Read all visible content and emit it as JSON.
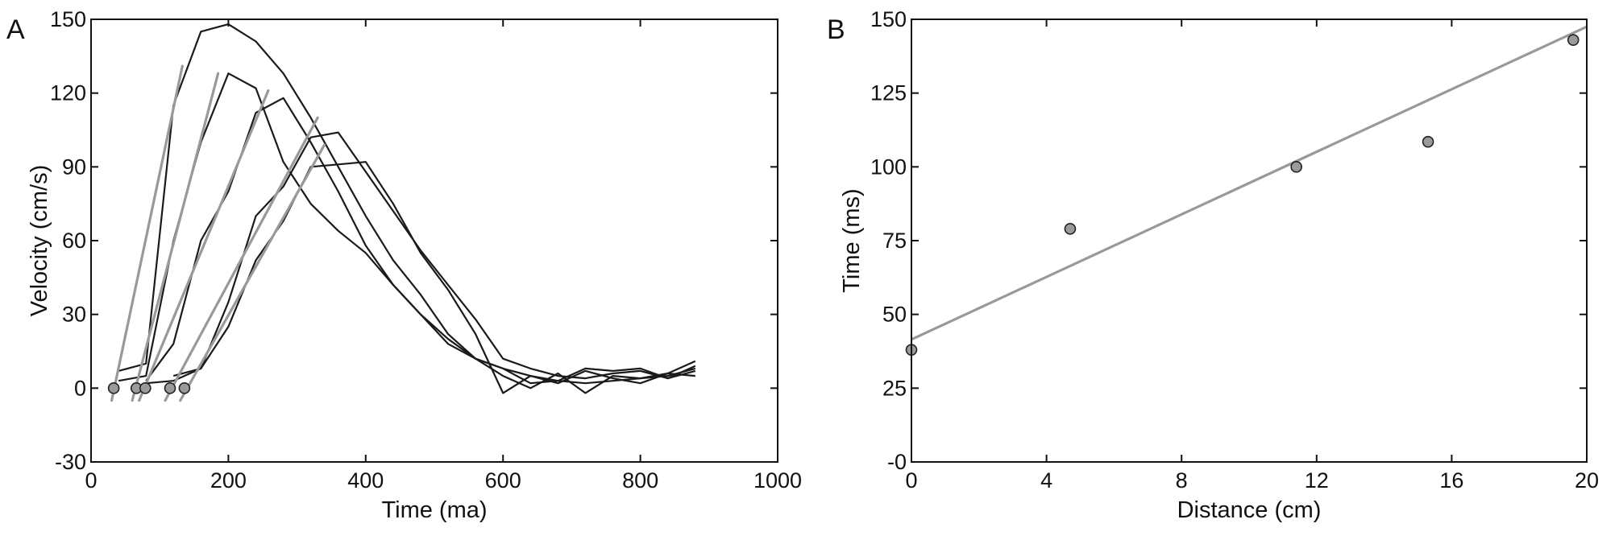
{
  "chart_data": [
    {
      "panel_label": "A",
      "type": "line",
      "title": "",
      "xlabel": "Time (ma)",
      "ylabel": "Velocity (cm/s)",
      "xlim": [
        0,
        1000
      ],
      "ylim": [
        -30,
        150
      ],
      "xticks": [
        0,
        200,
        400,
        600,
        800,
        1000
      ],
      "yticks": [
        -30,
        0,
        30,
        60,
        90,
        120,
        150
      ],
      "xtick_labels": [
        "0",
        "200",
        "400",
        "600",
        "800",
        "1000"
      ],
      "ytick_labels": [
        "-30",
        "0",
        "30",
        "60",
        "90",
        "120",
        "150"
      ],
      "grid": false,
      "series": [
        {
          "color": "#1a1a1a",
          "x": [
            40,
            80,
            120,
            160,
            200,
            240,
            280,
            320,
            360,
            400,
            440,
            480,
            520,
            560,
            600,
            640,
            680,
            720,
            760,
            800,
            840,
            880
          ],
          "y": [
            7,
            10,
            115,
            145,
            148,
            141,
            128,
            110,
            90,
            70,
            52,
            38,
            22,
            12,
            8,
            5,
            3,
            2,
            3,
            4,
            5,
            8
          ]
        },
        {
          "color": "#1a1a1a",
          "x": [
            40,
            80,
            120,
            160,
            200,
            240,
            280,
            320,
            360,
            400,
            440,
            480,
            520,
            560,
            600,
            640,
            680,
            720,
            760,
            800,
            840,
            880
          ],
          "y": [
            3,
            5,
            60,
            100,
            128,
            122,
            92,
            75,
            64,
            55,
            42,
            30,
            18,
            12,
            5,
            0,
            6,
            -2,
            5,
            4,
            6,
            5
          ]
        },
        {
          "color": "#1a1a1a",
          "x": [
            80,
            120,
            160,
            200,
            240,
            280,
            320,
            360,
            400,
            440,
            480,
            520,
            560,
            600,
            640,
            680,
            720,
            760,
            800,
            840,
            880
          ],
          "y": [
            3,
            18,
            60,
            80,
            112,
            118,
            100,
            80,
            58,
            42,
            30,
            20,
            12,
            8,
            2,
            3,
            8,
            7,
            8,
            4,
            9
          ]
        },
        {
          "color": "#1a1a1a",
          "x": [
            80,
            120,
            160,
            200,
            240,
            280,
            320,
            360,
            400,
            440,
            480,
            520,
            560,
            600,
            640,
            680,
            720,
            760,
            800,
            840,
            880
          ],
          "y": [
            2,
            3,
            8,
            35,
            70,
            82,
            102,
            104,
            88,
            72,
            56,
            42,
            28,
            12,
            8,
            5,
            4,
            6,
            7,
            4,
            7
          ]
        },
        {
          "color": "#1a1a1a",
          "x": [
            120,
            160,
            200,
            240,
            280,
            320,
            360,
            400,
            440,
            480,
            520,
            560,
            600,
            640,
            680,
            720,
            760,
            800,
            840,
            880
          ],
          "y": [
            5,
            8,
            25,
            52,
            68,
            90,
            91,
            92,
            75,
            55,
            40,
            22,
            -2,
            5,
            2,
            7,
            4,
            2,
            6,
            11
          ]
        }
      ],
      "fit_lines": [
        {
          "color": "#999999",
          "x": [
            30,
            133
          ],
          "y": [
            -5,
            131
          ]
        },
        {
          "color": "#999999",
          "x": [
            60,
            185
          ],
          "y": [
            -5,
            128
          ]
        },
        {
          "color": "#999999",
          "x": [
            70,
            258
          ],
          "y": [
            -5,
            121
          ]
        },
        {
          "color": "#999999",
          "x": [
            108,
            330
          ],
          "y": [
            -5,
            110
          ]
        },
        {
          "color": "#999999",
          "x": [
            130,
            340
          ],
          "y": [
            -5,
            99
          ]
        }
      ],
      "onset_points": {
        "color": "#9a9a9a",
        "x": [
          33,
          66,
          79,
          115,
          136
        ],
        "y": [
          0,
          0,
          0,
          0,
          0
        ]
      }
    },
    {
      "panel_label": "B",
      "type": "scatter",
      "title": "",
      "xlabel": "Distance (cm)",
      "ylabel": "Time (ms)",
      "xlim": [
        0,
        20
      ],
      "ylim": [
        0,
        150
      ],
      "xticks": [
        0,
        4,
        8,
        12,
        16,
        20
      ],
      "yticks": [
        0,
        25,
        50,
        75,
        100,
        125,
        150
      ],
      "xtick_labels": [
        "0",
        "4",
        "8",
        "12",
        "16",
        "20"
      ],
      "ytick_labels": [
        "-0",
        "25",
        "50",
        "75",
        "100",
        "125",
        "150"
      ],
      "grid": false,
      "points": {
        "color": "#9a9a9a",
        "x": [
          0,
          4.7,
          11.4,
          15.3,
          19.6
        ],
        "y": [
          38,
          79,
          100,
          108.5,
          143
        ]
      },
      "fit_line": {
        "color": "#999999",
        "x": [
          0,
          20
        ],
        "y": [
          41.5,
          147.5
        ]
      }
    }
  ]
}
